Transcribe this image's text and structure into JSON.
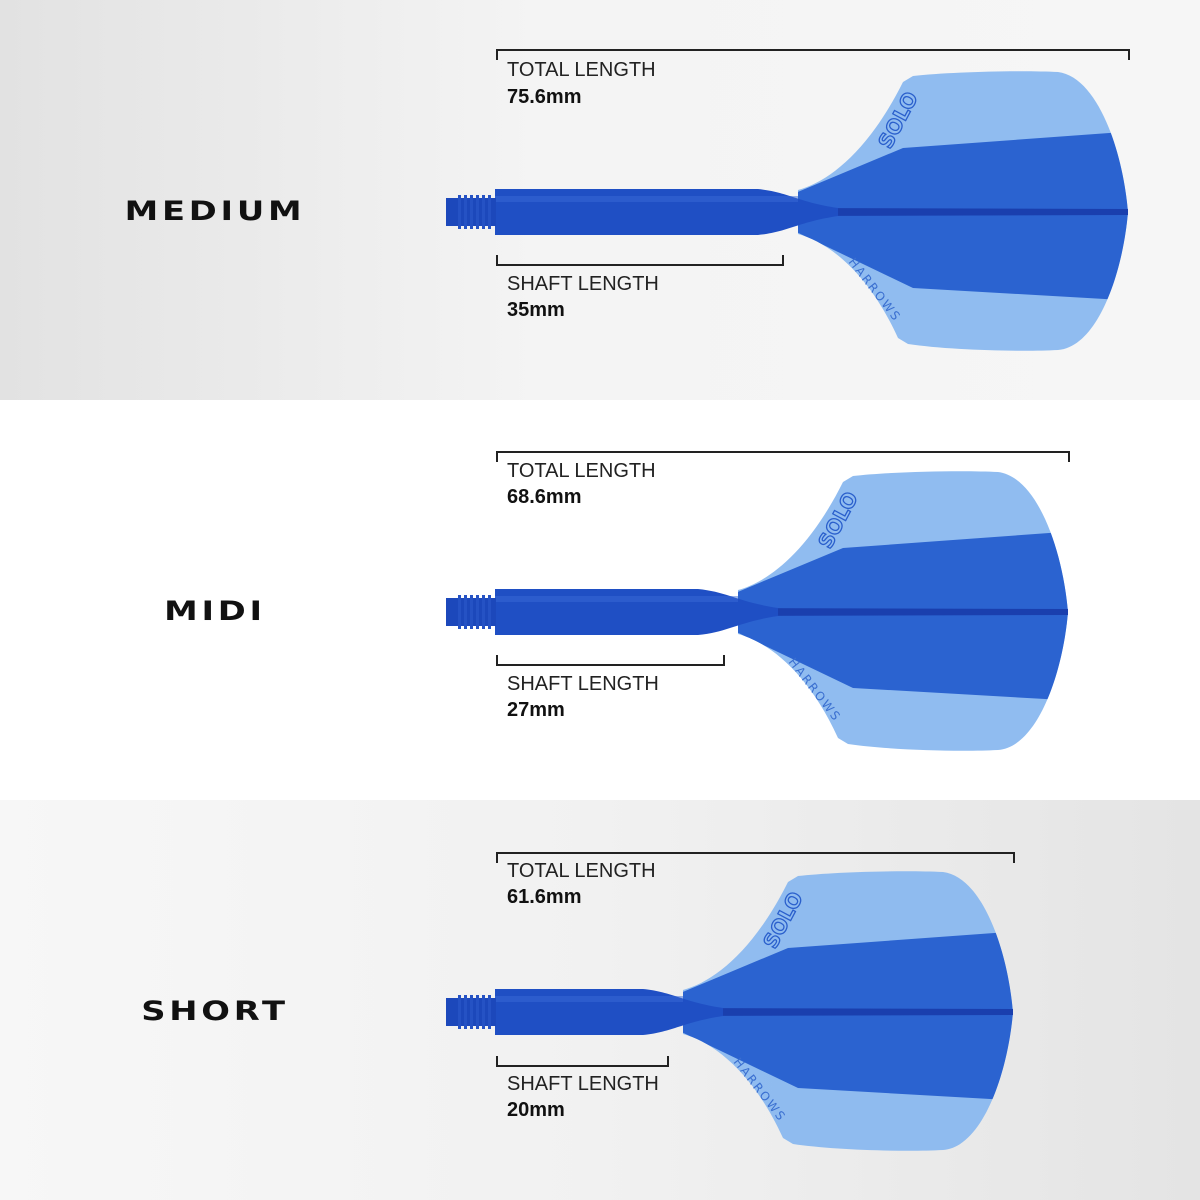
{
  "variants": [
    {
      "name": "MEDIUM",
      "total_label": "TOTAL LENGTH",
      "total_value": "75.6mm",
      "shaft_label": "SHAFT LENGTH",
      "shaft_value": "35mm"
    },
    {
      "name": "MIDI",
      "total_label": "TOTAL LENGTH",
      "total_value": "68.6mm",
      "shaft_label": "SHAFT LENGTH",
      "shaft_value": "27mm"
    },
    {
      "name": "SHORT",
      "total_label": "TOTAL LENGTH",
      "total_value": "61.6mm",
      "shaft_label": "SHAFT LENGTH",
      "shaft_value": "20mm"
    }
  ],
  "flight_logo": "SOLO",
  "flight_brand": "HARROWS",
  "colors": {
    "shaft": "#1f4fc4",
    "flight_light": "#8ab8ef",
    "flight_dark": "#2b63d0",
    "bracket": "#222222"
  }
}
